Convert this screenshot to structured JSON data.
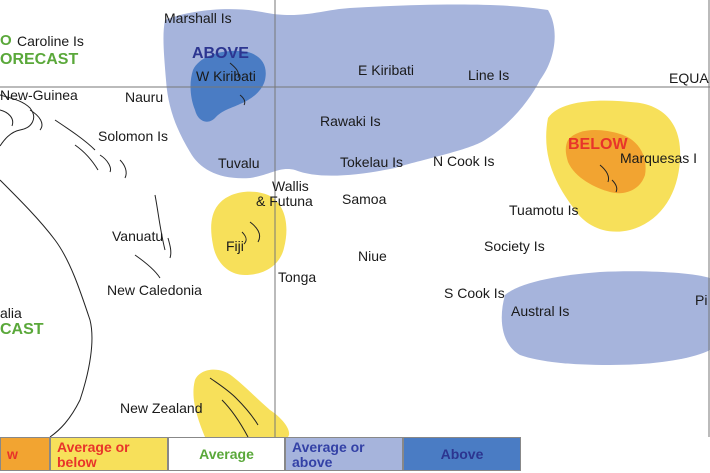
{
  "map": {
    "labels": {
      "caroline": "Caroline Is",
      "marshall": "Marshall Is",
      "fore_top": "ORECAST",
      "o_top": "O",
      "png": "New-Guinea",
      "nauru": "Nauru",
      "w_kiribati": "W Kiribati",
      "above": "ABOVE",
      "e_kiribati": "E Kiribati",
      "line": "Line Is",
      "equator": "EQUA",
      "solomon": "Solomon Is",
      "rawaki": "Rawaki Is",
      "below": "BELOW",
      "marquesas": "Marquesas I",
      "tuvalu": "Tuvalu",
      "tokelau": "Tokelau Is",
      "ncook": "N Cook Is",
      "wallis1": "Wallis",
      "wallis2": "& Futuna",
      "samoa": "Samoa",
      "tuamotu": "Tuamotu Is",
      "vanuatu": "Vanuatu",
      "fiji": "Fiji",
      "niue": "Niue",
      "society": "Society Is",
      "tonga": "Tonga",
      "newcal": "New Caledonia",
      "scook": "S Cook Is",
      "austral": "Austral Is",
      "pi": "Pi",
      "alia": "alia",
      "cast": "CAST",
      "nz": "New Zealand"
    }
  },
  "colors": {
    "above": "#4a7cc4",
    "average_or_above": "#a6b4dc",
    "average": "#ffffff",
    "average_or_below": "#f7e05a",
    "below": "#f2a431",
    "grid": "#777777"
  },
  "legend": [
    {
      "label": "w",
      "color": "#f2a431",
      "text_color": "#e8342a"
    },
    {
      "label": "Average or below",
      "color": "#f7e05a",
      "text_color": "#e8342a"
    },
    {
      "label": "Average",
      "color": "#ffffff",
      "text_color": "#5aa83a"
    },
    {
      "label": "Average or above",
      "color": "#a6b4dc",
      "text_color": "#3341a6"
    },
    {
      "label": "Above",
      "color": "#4a7cc4",
      "text_color": "#2c3590"
    }
  ]
}
